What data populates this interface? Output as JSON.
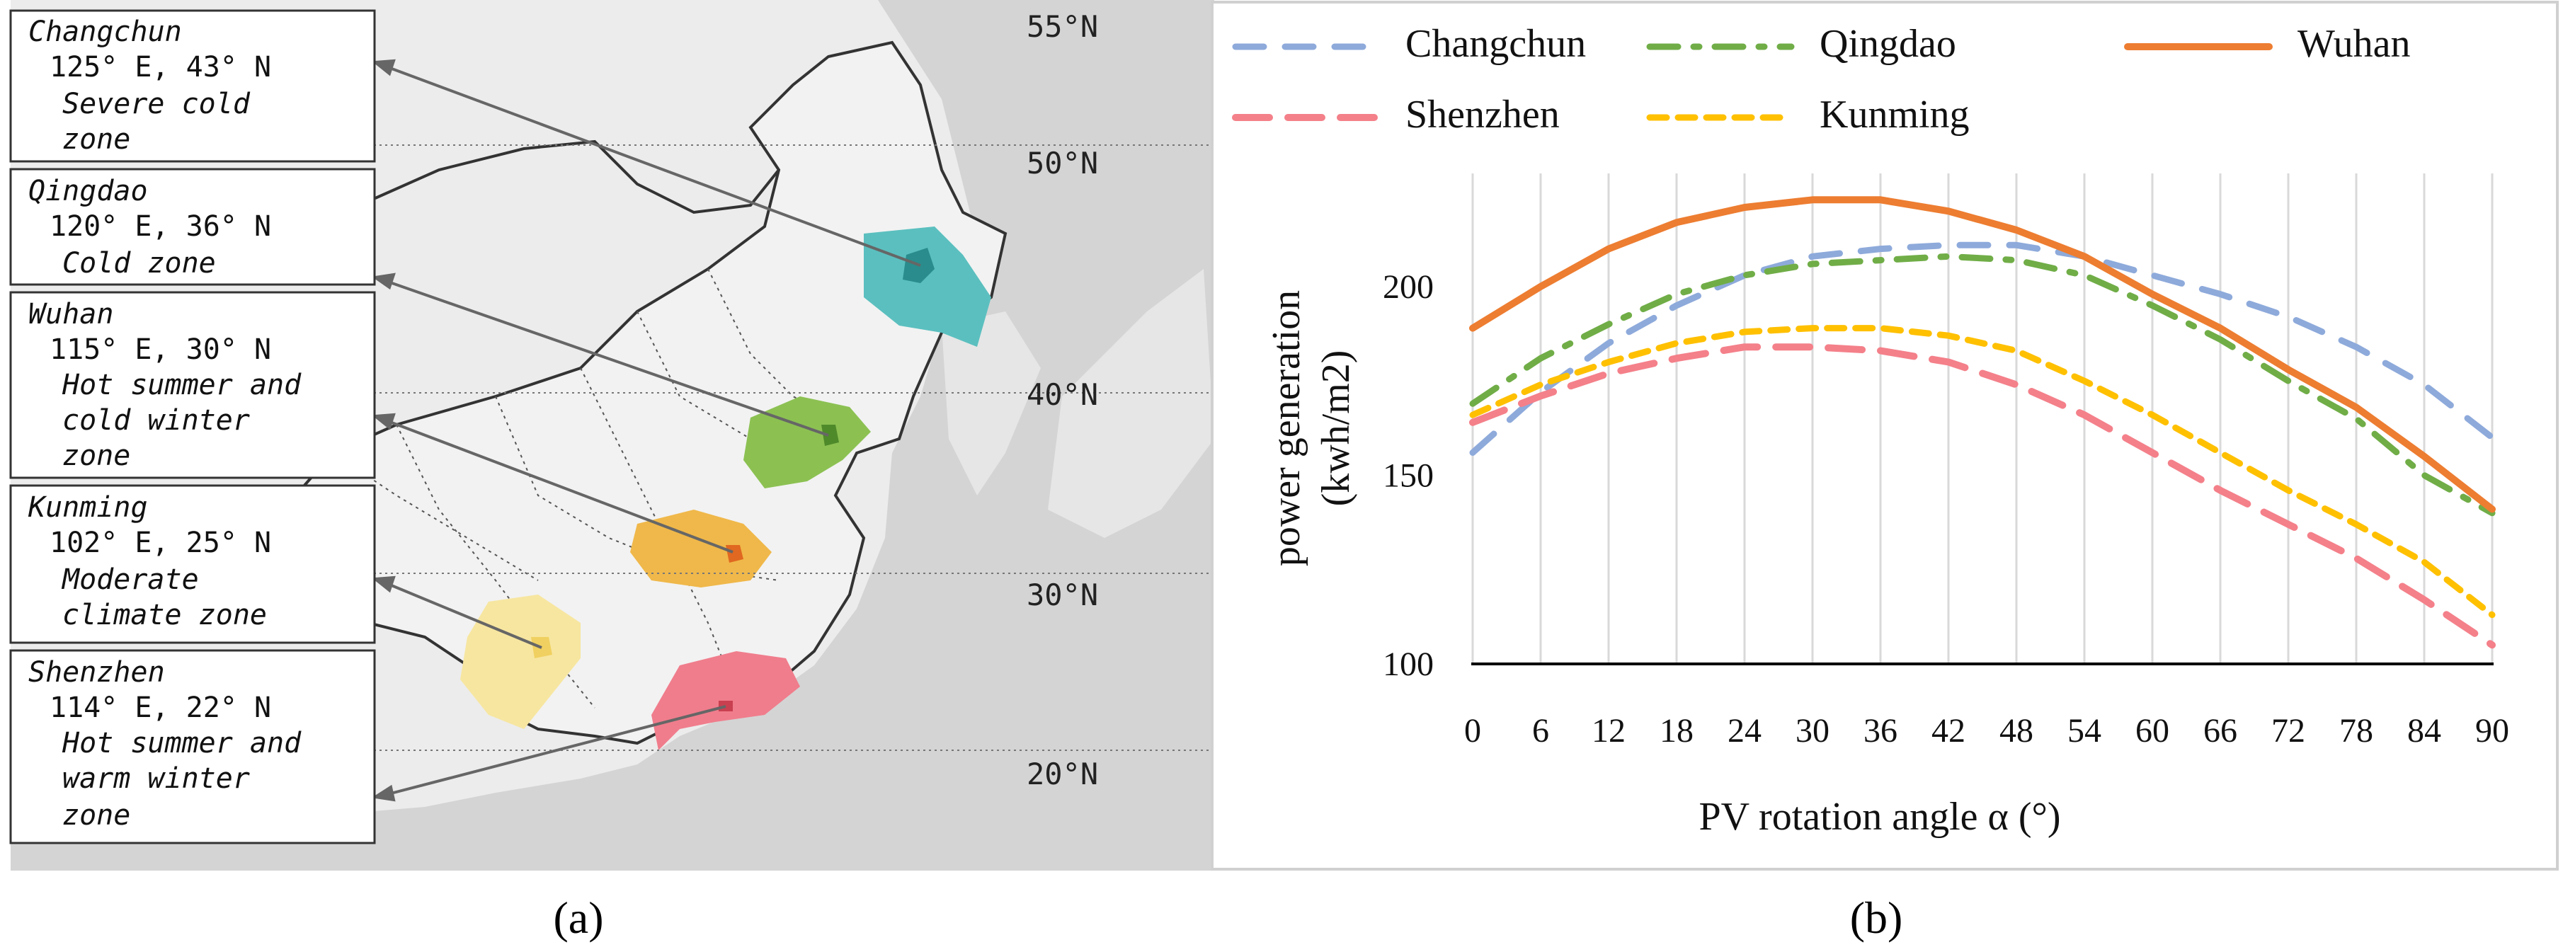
{
  "panel_a": {
    "caption": "(a)",
    "cities": [
      {
        "name": "Changchun",
        "coords": "125° E, 43° N",
        "climate": [
          "Severe cold",
          "zone"
        ],
        "color": "#5bbfbf"
      },
      {
        "name": "Qingdao",
        "coords": "120° E, 36° N",
        "climate": [
          "Cold zone"
        ],
        "color": "#8cc152"
      },
      {
        "name": "Wuhan",
        "coords": "115° E, 30° N",
        "climate": [
          "Hot summer and",
          "cold winter",
          "zone"
        ],
        "color": "#f0b84a"
      },
      {
        "name": "Kunming",
        "coords": "102° E, 25° N",
        "climate": [
          "Moderate",
          "climate zone"
        ],
        "color": "#f7e6a0"
      },
      {
        "name": "Shenzhen",
        "coords": "114° E, 22° N",
        "climate": [
          "Hot summer and",
          "warm winter",
          "zone"
        ],
        "color": "#f07d8c"
      }
    ],
    "latitudes": [
      "55°N",
      "50°N",
      "40°N",
      "30°N",
      "20°N"
    ]
  },
  "panel_b": {
    "caption": "(b)"
  },
  "chart_data": {
    "type": "line",
    "title": "",
    "xlabel": "PV rotation angle α (°)",
    "ylabel": [
      "power generation",
      "(kwh/m2)"
    ],
    "xlim": [
      0,
      90
    ],
    "ylim": [
      100,
      230
    ],
    "x_ticks": [
      0,
      6,
      12,
      18,
      24,
      30,
      36,
      42,
      48,
      54,
      60,
      66,
      72,
      78,
      84,
      90
    ],
    "y_ticks": [
      100,
      150,
      200
    ],
    "grid": "vertical",
    "legend": "top",
    "x": [
      0,
      6,
      12,
      18,
      24,
      30,
      36,
      42,
      48,
      54,
      60,
      66,
      72,
      78,
      84,
      90
    ],
    "series": [
      {
        "name": "Changchun",
        "color": "#8eaadb",
        "dash": "dash",
        "values": [
          156,
          172,
          185,
          195,
          203,
          208,
          210,
          211,
          211,
          208,
          203,
          198,
          192,
          184,
          174,
          160
        ]
      },
      {
        "name": "Qingdao",
        "color": "#70ad47",
        "dash": "dashdot",
        "values": [
          169,
          181,
          190,
          198,
          203,
          206,
          207,
          208,
          207,
          203,
          195,
          186,
          175,
          165,
          150,
          140
        ]
      },
      {
        "name": "Wuhan",
        "color": "#ed7d31",
        "dash": "solid",
        "values": [
          189,
          200,
          210,
          217,
          221,
          223,
          223,
          220,
          215,
          208,
          198,
          189,
          178,
          168,
          155,
          141
        ]
      },
      {
        "name": "Shenzhen",
        "color": "#f4808a",
        "dash": "longdash",
        "values": [
          164,
          171,
          177,
          181,
          184,
          184,
          183,
          180,
          174,
          166,
          156,
          146,
          137,
          128,
          117,
          105
        ]
      },
      {
        "name": "Kunming",
        "color": "#ffc000",
        "dash": "shortdash",
        "values": [
          166,
          174,
          180,
          185,
          188,
          189,
          189,
          187,
          183,
          175,
          166,
          156,
          146,
          137,
          127,
          113
        ]
      }
    ]
  }
}
